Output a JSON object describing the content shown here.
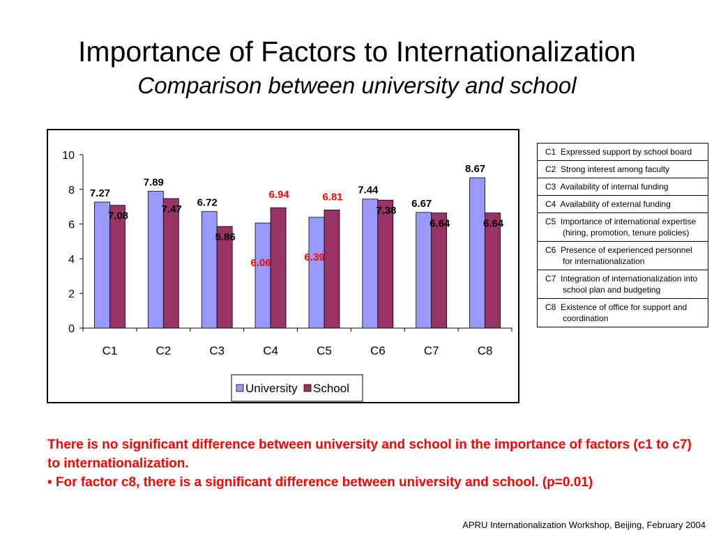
{
  "slide": {
    "title": "Importance of Factors to Internationalization",
    "subtitle": "Comparison between university and school",
    "footer": "APRU Internationalization Workshop, Beijing, February 2004"
  },
  "colors": {
    "university": "#9999ff",
    "school": "#993366",
    "highlight_label": "#ff0000",
    "normal_label": "#000000"
  },
  "factors": [
    {
      "code": "C1",
      "description": "Expressed support by school board"
    },
    {
      "code": "C2",
      "description": "Strong interest among faculty"
    },
    {
      "code": "C3",
      "description": "Availability of internal funding"
    },
    {
      "code": "C4",
      "description": "Availability of external funding"
    },
    {
      "code": "C5",
      "description": "Importance of international expertise (hiring, promotion, tenure policies)"
    },
    {
      "code": "C6",
      "description": "Presence of experienced personnel for internationalization"
    },
    {
      "code": "C7",
      "description": "Integration of internationalization into school plan and budgeting"
    },
    {
      "code": "C8",
      "description": "Existence of office for support and coordination"
    }
  ],
  "notes": {
    "line1": " There is no significant difference between university and school in the importance of factors (c1 to c7) to internationalization.",
    "line2": "• For factor c8, there is a significant difference between university and school. (p=0.01)"
  },
  "chart_data": {
    "type": "bar",
    "categories": [
      "C1",
      "C2",
      "C3",
      "C4",
      "C5",
      "C6",
      "C7",
      "C8"
    ],
    "series": [
      {
        "name": "University",
        "values": [
          7.27,
          7.89,
          6.72,
          6.06,
          6.39,
          7.44,
          6.67,
          8.67
        ]
      },
      {
        "name": "School",
        "values": [
          7.08,
          7.47,
          5.86,
          6.94,
          6.81,
          7.38,
          6.64,
          6.64
        ]
      }
    ],
    "data_labels": {
      "University": [
        "7.27",
        "7.89",
        "6.72",
        "6.06",
        "6.39",
        "7.44",
        "6.67",
        "8.67"
      ],
      "School": [
        "7.08",
        "7.47",
        "5.86",
        "6.94",
        "6.81",
        "7.38",
        "6.64",
        "6.64"
      ]
    },
    "highlighted_categories": [
      "C4",
      "C5"
    ],
    "ylim": [
      0,
      10
    ],
    "yticks": [
      "0",
      "2",
      "4",
      "6",
      "8",
      "10"
    ],
    "grid": false,
    "legend_position": "bottom"
  }
}
